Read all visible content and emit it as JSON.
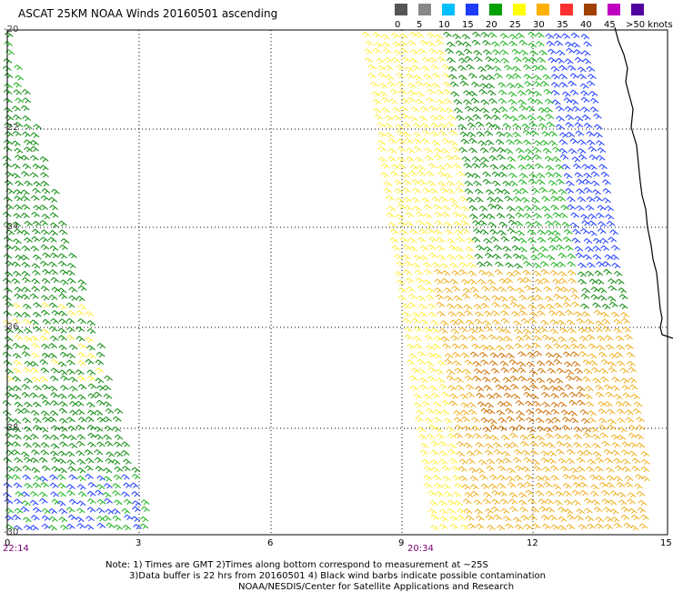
{
  "title": "ASCAT 25KM NOAA Winds 20160501 ascending",
  "legend": {
    "labels": [
      "0",
      "5",
      "10",
      "15",
      "20",
      "25",
      "30",
      "35",
      "40",
      "45",
      ">50 knots"
    ],
    "colors": [
      "#555555",
      "#888888",
      "#00bfff",
      "#1e3cff",
      "#00a000",
      "#ffff00",
      "#ffb000",
      "#ff3030",
      "#a04000",
      "#c000c0",
      "#5000a0"
    ]
  },
  "axes": {
    "lat_labels": [
      "-20",
      "-22",
      "-24",
      "-26",
      "-28",
      "-30"
    ],
    "lon_labels": [
      "0",
      "3",
      "6",
      "9",
      "12",
      "15"
    ]
  },
  "passes": [
    {
      "time": "22:14"
    },
    {
      "time": "20:34"
    }
  ],
  "notes": [
    "Note: 1) Times are GMT 2)Times along bottom correspond to measurement at ~25S",
    "3)Data buffer is 22 hrs from 20160501 4) Black wind barbs indicate possible contamination",
    "NOAA/NESDIS/Center for Satellite Applications and Research"
  ]
}
